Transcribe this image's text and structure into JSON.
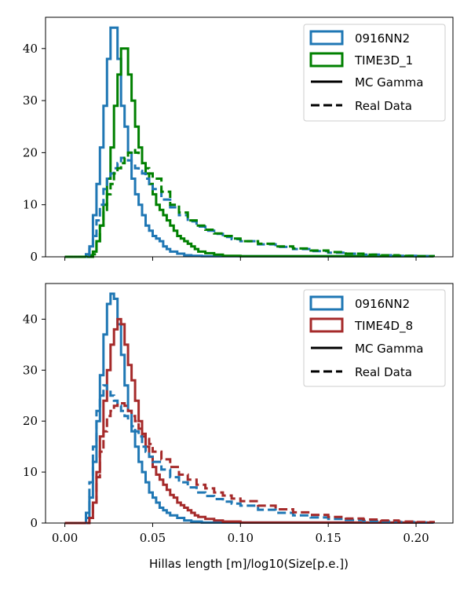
{
  "chart_data": [
    {
      "type": "histogram",
      "xlim": [
        -0.011,
        0.221
      ],
      "ylim": [
        0,
        46
      ],
      "yticks": [
        0,
        10,
        20,
        30,
        40
      ],
      "xticks": [
        0.0,
        0.05,
        0.1,
        0.15,
        0.2
      ],
      "show_xtick_labels": false,
      "legend": [
        "0916NN2",
        "TIME3D_1",
        "MC Gamma",
        "Real Data"
      ],
      "series": [
        {
          "name": "0916NN2 MC Gamma",
          "color": "#1f77b4",
          "style": "solid",
          "x": [
            0.0,
            0.012,
            0.014,
            0.016,
            0.018,
            0.02,
            0.022,
            0.024,
            0.026,
            0.028,
            0.03,
            0.032,
            0.034,
            0.036,
            0.038,
            0.04,
            0.042,
            0.044,
            0.046,
            0.048,
            0.05,
            0.052,
            0.054,
            0.056,
            0.058,
            0.06,
            0.064,
            0.068,
            0.072,
            0.078,
            0.21
          ],
          "y": [
            0,
            0.5,
            2,
            8,
            14,
            21,
            29,
            38,
            44,
            44,
            38,
            29,
            25,
            20,
            15,
            12,
            10,
            8,
            6,
            5,
            4,
            3.5,
            3,
            2,
            1.5,
            1,
            0.6,
            0.3,
            0.2,
            0.1,
            0
          ]
        },
        {
          "name": "TIME3D_1 MC Gamma",
          "color": "#008000",
          "style": "solid",
          "x": [
            0.0,
            0.014,
            0.016,
            0.018,
            0.02,
            0.022,
            0.024,
            0.026,
            0.028,
            0.03,
            0.032,
            0.034,
            0.036,
            0.038,
            0.04,
            0.042,
            0.044,
            0.046,
            0.048,
            0.05,
            0.052,
            0.054,
            0.056,
            0.058,
            0.06,
            0.062,
            0.064,
            0.066,
            0.068,
            0.07,
            0.072,
            0.074,
            0.076,
            0.08,
            0.085,
            0.09,
            0.1,
            0.21
          ],
          "y": [
            0,
            0.3,
            1,
            3,
            6,
            10,
            15,
            21,
            29,
            35,
            40,
            40,
            35,
            30,
            25,
            21,
            18,
            16,
            14,
            12,
            10,
            9,
            8,
            7,
            6,
            5,
            4,
            3.5,
            3,
            2.5,
            2,
            1.5,
            1,
            0.7,
            0.4,
            0.2,
            0.1,
            0
          ]
        },
        {
          "name": "0916NN2 Real Data",
          "color": "#1f77b4",
          "style": "dashed",
          "x": [
            0.0,
            0.012,
            0.014,
            0.016,
            0.018,
            0.02,
            0.022,
            0.024,
            0.026,
            0.028,
            0.03,
            0.032,
            0.034,
            0.036,
            0.038,
            0.04,
            0.042,
            0.044,
            0.046,
            0.048,
            0.05,
            0.055,
            0.06,
            0.065,
            0.07,
            0.075,
            0.08,
            0.085,
            0.09,
            0.095,
            0.1,
            0.11,
            0.12,
            0.13,
            0.14,
            0.15,
            0.16,
            0.17,
            0.18,
            0.19,
            0.2,
            0.21
          ],
          "y": [
            0,
            0.3,
            1.5,
            4,
            7,
            10,
            13,
            15,
            16,
            17,
            18,
            19,
            19,
            18.5,
            18,
            17,
            16.5,
            16,
            15,
            14,
            13,
            11,
            9.5,
            8,
            6.8,
            5.8,
            5,
            4.4,
            3.8,
            3.4,
            3,
            2.4,
            1.9,
            1.5,
            1.1,
            0.8,
            0.6,
            0.4,
            0.3,
            0.2,
            0.1,
            0
          ]
        },
        {
          "name": "TIME3D_1 Real Data",
          "color": "#008000",
          "style": "dashed",
          "x": [
            0.0,
            0.016,
            0.018,
            0.02,
            0.022,
            0.024,
            0.026,
            0.028,
            0.03,
            0.032,
            0.034,
            0.036,
            0.038,
            0.04,
            0.042,
            0.044,
            0.046,
            0.048,
            0.05,
            0.055,
            0.06,
            0.065,
            0.07,
            0.075,
            0.08,
            0.085,
            0.09,
            0.095,
            0.1,
            0.11,
            0.12,
            0.13,
            0.14,
            0.15,
            0.16,
            0.17,
            0.18,
            0.19,
            0.2,
            0.21
          ],
          "y": [
            0,
            0.5,
            3,
            6,
            9,
            12,
            14,
            16,
            17,
            18,
            19,
            20,
            20.5,
            20,
            19.5,
            18,
            17,
            16,
            15,
            12.5,
            10,
            8.5,
            7,
            6,
            5.2,
            4.5,
            4,
            3.5,
            3,
            2.5,
            2,
            1.6,
            1.2,
            0.9,
            0.6,
            0.4,
            0.3,
            0.2,
            0.1,
            0
          ]
        }
      ]
    },
    {
      "type": "histogram",
      "xlim": [
        -0.011,
        0.221
      ],
      "ylim": [
        0,
        47
      ],
      "yticks": [
        0,
        10,
        20,
        30,
        40
      ],
      "xticks": [
        0.0,
        0.05,
        0.1,
        0.15,
        0.2
      ],
      "xtick_labels": [
        "0.00",
        "0.05",
        "0.10",
        "0.15",
        "0.20"
      ],
      "show_xtick_labels": true,
      "xlabel": "Hillas length [m]/log10(Size[p.e.])",
      "legend": [
        "0916NN2",
        "TIME4D_8",
        "MC Gamma",
        "Real Data"
      ],
      "series": [
        {
          "name": "0916NN2 MC Gamma",
          "color": "#1f77b4",
          "style": "solid",
          "x": [
            0.0,
            0.012,
            0.014,
            0.016,
            0.018,
            0.02,
            0.022,
            0.024,
            0.026,
            0.028,
            0.03,
            0.032,
            0.034,
            0.036,
            0.038,
            0.04,
            0.042,
            0.044,
            0.046,
            0.048,
            0.05,
            0.052,
            0.054,
            0.056,
            0.058,
            0.06,
            0.064,
            0.068,
            0.072,
            0.078,
            0.21
          ],
          "y": [
            0,
            1,
            5,
            12,
            20,
            29,
            37,
            43,
            45,
            44,
            39,
            33,
            27,
            22,
            18,
            15,
            12,
            10,
            8,
            6,
            5,
            4,
            3,
            2.5,
            2,
            1.5,
            1,
            0.5,
            0.3,
            0.1,
            0
          ]
        },
        {
          "name": "TIME4D_8 MC Gamma",
          "color": "#a52a2a",
          "style": "solid",
          "x": [
            0.0,
            0.014,
            0.016,
            0.018,
            0.02,
            0.022,
            0.024,
            0.026,
            0.028,
            0.03,
            0.032,
            0.034,
            0.036,
            0.038,
            0.04,
            0.042,
            0.044,
            0.046,
            0.048,
            0.05,
            0.052,
            0.054,
            0.056,
            0.058,
            0.06,
            0.062,
            0.064,
            0.066,
            0.068,
            0.07,
            0.072,
            0.074,
            0.076,
            0.08,
            0.085,
            0.09,
            0.1,
            0.21
          ],
          "y": [
            0,
            1,
            4,
            10,
            17,
            24,
            30,
            35,
            38,
            40,
            39,
            35,
            31,
            28,
            24,
            20,
            17,
            15,
            13,
            11,
            9.5,
            8.5,
            7.5,
            6.5,
            5.5,
            5,
            4,
            3.5,
            3,
            2.5,
            2,
            1.5,
            1.2,
            0.8,
            0.5,
            0.3,
            0.1,
            0
          ]
        },
        {
          "name": "0916NN2 Real Data",
          "color": "#1f77b4",
          "style": "dashed",
          "x": [
            0.0,
            0.012,
            0.014,
            0.016,
            0.018,
            0.02,
            0.022,
            0.024,
            0.026,
            0.028,
            0.03,
            0.032,
            0.034,
            0.036,
            0.038,
            0.04,
            0.042,
            0.044,
            0.046,
            0.048,
            0.05,
            0.055,
            0.06,
            0.065,
            0.07,
            0.075,
            0.08,
            0.085,
            0.09,
            0.095,
            0.1,
            0.11,
            0.12,
            0.13,
            0.14,
            0.15,
            0.16,
            0.17,
            0.18,
            0.19,
            0.2,
            0.21
          ],
          "y": [
            0,
            2,
            8,
            15,
            22,
            25,
            27,
            26,
            25,
            24,
            23,
            22,
            21,
            20,
            19,
            18,
            17,
            15,
            14,
            13,
            12,
            10.5,
            9,
            8,
            7,
            6,
            5.3,
            4.7,
            4.2,
            3.8,
            3.4,
            2.6,
            2,
            1.5,
            1.1,
            0.8,
            0.6,
            0.4,
            0.3,
            0.2,
            0.1,
            0
          ]
        },
        {
          "name": "TIME4D_8 Real Data",
          "color": "#a52a2a",
          "style": "dashed",
          "x": [
            0.0,
            0.014,
            0.016,
            0.018,
            0.02,
            0.022,
            0.024,
            0.026,
            0.028,
            0.03,
            0.032,
            0.034,
            0.036,
            0.038,
            0.04,
            0.042,
            0.044,
            0.046,
            0.048,
            0.05,
            0.055,
            0.06,
            0.065,
            0.07,
            0.075,
            0.08,
            0.085,
            0.09,
            0.095,
            0.1,
            0.11,
            0.12,
            0.13,
            0.14,
            0.15,
            0.16,
            0.17,
            0.18,
            0.19,
            0.2,
            0.21
          ],
          "y": [
            0,
            1,
            4,
            9,
            14,
            18,
            21,
            22,
            23,
            23.5,
            23.5,
            23,
            22,
            21,
            20,
            18.5,
            17.5,
            16.5,
            15.5,
            14,
            12.5,
            11,
            9.5,
            8.5,
            7.5,
            6.8,
            6,
            5.4,
            4.8,
            4.3,
            3.4,
            2.7,
            2.1,
            1.6,
            1.2,
            0.9,
            0.7,
            0.5,
            0.3,
            0.2,
            0
          ]
        }
      ]
    }
  ]
}
